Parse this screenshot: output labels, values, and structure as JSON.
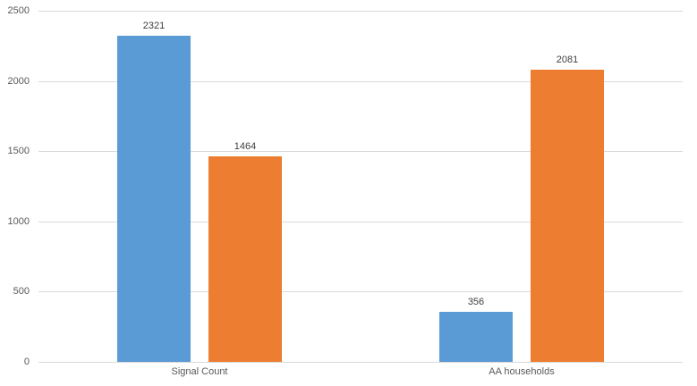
{
  "chart_data": {
    "type": "bar",
    "categories": [
      "Signal Count",
      "AA households"
    ],
    "series": [
      {
        "color": "#5B9BD5",
        "values": [
          2321,
          356
        ]
      },
      {
        "color": "#ED7D31",
        "values": [
          1464,
          2081
        ]
      }
    ],
    "y_ticks": [
      0,
      500,
      1000,
      1500,
      2000,
      2500
    ],
    "ylim": [
      0,
      2500
    ],
    "grid": true,
    "legend": false,
    "title": "",
    "xlabel": "",
    "ylabel": ""
  },
  "colors": {
    "background": "#FFFFFF",
    "gridline": "#D9D9D9",
    "axis_line": "#D9D9D9",
    "tick_label": "#595959",
    "category_label": "#595959",
    "value_label": "#404040"
  }
}
